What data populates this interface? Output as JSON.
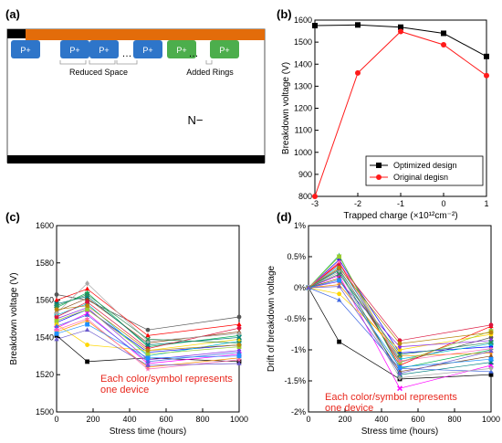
{
  "panels": [
    {
      "id": "a",
      "label": "(a)"
    },
    {
      "id": "b",
      "label": "(b)"
    },
    {
      "id": "c",
      "label": "(c)"
    },
    {
      "id": "d",
      "label": "(d)"
    }
  ],
  "diagram_a": {
    "rings": [
      {
        "label": "P+",
        "color": "#2e75c9"
      },
      {
        "label": "P+",
        "color": "#2e75c9"
      },
      {
        "label": "P+",
        "color": "#2e75c9"
      },
      {
        "label": "P+",
        "color": "#2e75c9"
      },
      {
        "label": "P+",
        "color": "#4cae4c"
      },
      {
        "label": "P+",
        "color": "#4cae4c"
      }
    ],
    "ellipsis": "…",
    "reduced_space_label": "Reduced Space",
    "added_rings_label": "Added Rings",
    "substrate_label": "N−",
    "metal_color": "#e36c0a"
  },
  "chart_data": [
    {
      "panel": "b",
      "type": "line",
      "xlabel": "Trapped charge (×10¹²cm⁻²)",
      "ylabel": "Breakdown voltage (V)",
      "xlim": [
        -3,
        1
      ],
      "ylim": [
        800,
        1600
      ],
      "xticks": [
        -3,
        -2,
        -1,
        0,
        1
      ],
      "yticks": [
        800,
        900,
        1000,
        1100,
        1200,
        1300,
        1400,
        1500,
        1600
      ],
      "legend_position": "bottom-right",
      "series": [
        {
          "name": "Optimized design",
          "color": "#000000",
          "marker": "square",
          "x": [
            -3,
            -2,
            -1,
            0,
            1
          ],
          "y": [
            1575,
            1578,
            1568,
            1540,
            1435
          ]
        },
        {
          "name": "Original degisn",
          "color": "#ff1a1a",
          "marker": "circle",
          "x": [
            -3,
            -2,
            -1,
            0,
            1
          ],
          "y": [
            800,
            1360,
            1548,
            1488,
            1348
          ]
        }
      ]
    },
    {
      "panel": "c",
      "type": "line",
      "xlabel": "Stress time (hours)",
      "ylabel": "Breakdown voltage (V)",
      "xlim": [
        0,
        1000
      ],
      "ylim": [
        1500,
        1600
      ],
      "xticks": [
        0,
        200,
        400,
        600,
        800,
        1000
      ],
      "yticks": [
        1500,
        1520,
        1540,
        1560,
        1580,
        1600
      ],
      "annotation": "Each color/symbol represents one device",
      "x": [
        0,
        168,
        500,
        1000
      ],
      "series": [
        {
          "color": "#000000",
          "values": [
            1541,
            1527,
            1529,
            1527
          ]
        },
        {
          "color": "#555555",
          "values": [
            1563,
            1560,
            1544,
            1551
          ]
        },
        {
          "color": "#ff0000",
          "values": [
            1560,
            1566,
            1541,
            1547
          ]
        },
        {
          "color": "#0000ff",
          "values": [
            1548,
            1555,
            1532,
            1536
          ]
        },
        {
          "color": "#00b050",
          "values": [
            1556,
            1564,
            1535,
            1541
          ]
        },
        {
          "color": "#ff00ff",
          "values": [
            1545,
            1553,
            1526,
            1531
          ]
        },
        {
          "color": "#00bcd4",
          "values": [
            1552,
            1558,
            1530,
            1538
          ]
        },
        {
          "color": "#ffd700",
          "values": [
            1547,
            1536,
            1533,
            1539
          ]
        },
        {
          "color": "#8b4513",
          "values": [
            1554,
            1561,
            1537,
            1543
          ]
        },
        {
          "color": "#8a2be2",
          "values": [
            1550,
            1556,
            1528,
            1533
          ]
        },
        {
          "color": "#ff8c00",
          "values": [
            1543,
            1549,
            1524,
            1529
          ]
        },
        {
          "color": "#008080",
          "values": [
            1558,
            1562,
            1536,
            1540
          ]
        },
        {
          "color": "#9acd32",
          "values": [
            1549,
            1555,
            1531,
            1535
          ]
        },
        {
          "color": "#dc143c",
          "values": [
            1551,
            1559,
            1534,
            1545
          ]
        },
        {
          "color": "#4169e1",
          "values": [
            1546,
            1552,
            1527,
            1532
          ]
        },
        {
          "color": "#a9a9a9",
          "values": [
            1553,
            1569,
            1538,
            1542
          ]
        },
        {
          "color": "#ff69b4",
          "values": [
            1544,
            1550,
            1523,
            1528
          ]
        },
        {
          "color": "#2e8b57",
          "values": [
            1557,
            1563,
            1539,
            1537
          ]
        },
        {
          "color": "#1e90ff",
          "values": [
            1542,
            1547,
            1529,
            1530
          ]
        },
        {
          "color": "#b8860b",
          "values": [
            1555,
            1557,
            1533,
            1536
          ]
        },
        {
          "color": "#6a5acd",
          "values": [
            1539,
            1544,
            1525,
            1526
          ]
        }
      ]
    },
    {
      "panel": "d",
      "type": "line",
      "xlabel": "Stress time (hours)",
      "ylabel": "Drift of breakdown voltage",
      "xlim": [
        0,
        1000
      ],
      "ylim": [
        -2,
        1
      ],
      "xticks": [
        0,
        200,
        400,
        600,
        800,
        1000
      ],
      "yticks": [
        -2,
        -1.5,
        -1,
        -0.5,
        0,
        0.5,
        1
      ],
      "ytick_labels": [
        "-2%",
        "-1.5%",
        "-1%",
        "-0.5%",
        "0%",
        "0.5%",
        "1%"
      ],
      "annotation": "Each color/symbol represents one device",
      "x": [
        0,
        168,
        500,
        1000
      ],
      "series": [
        {
          "color": "#000000",
          "values": [
            0,
            -0.87,
            -1.47,
            -1.4
          ]
        },
        {
          "color": "#555555",
          "values": [
            0,
            0.3,
            -1.2,
            -0.8
          ]
        },
        {
          "color": "#ff0000",
          "values": [
            0,
            0.4,
            -1.25,
            -0.62
          ]
        },
        {
          "color": "#0000ff",
          "values": [
            0,
            0.45,
            -1.05,
            -0.95
          ]
        },
        {
          "color": "#00b050",
          "values": [
            0,
            0.52,
            -1.3,
            -1.0
          ]
        },
        {
          "color": "#ff00ff",
          "values": [
            0,
            0.2,
            -1.62,
            -1.25
          ]
        },
        {
          "color": "#00bcd4",
          "values": [
            0,
            0.35,
            -1.15,
            -0.9
          ]
        },
        {
          "color": "#ffd700",
          "values": [
            0,
            -0.1,
            -1.0,
            -0.75
          ]
        },
        {
          "color": "#8b4513",
          "values": [
            0,
            0.15,
            -1.35,
            -1.1
          ]
        },
        {
          "color": "#8a2be2",
          "values": [
            0,
            0.1,
            -0.95,
            -0.85
          ]
        },
        {
          "color": "#ff8c00",
          "values": [
            0,
            0.05,
            -1.1,
            -1.05
          ]
        },
        {
          "color": "#008080",
          "values": [
            0,
            0.28,
            -1.4,
            -1.2
          ]
        },
        {
          "color": "#9acd32",
          "values": [
            0,
            0.5,
            -1.2,
            -0.7
          ]
        },
        {
          "color": "#dc143c",
          "values": [
            0,
            0.38,
            -0.85,
            -0.6
          ]
        },
        {
          "color": "#4169e1",
          "values": [
            0,
            -0.2,
            -1.3,
            -1.35
          ]
        },
        {
          "color": "#a9a9a9",
          "values": [
            0,
            0.25,
            -1.45,
            -1.3
          ]
        },
        {
          "color": "#ff69b4",
          "values": [
            0,
            0.42,
            -1.18,
            -0.98
          ]
        },
        {
          "color": "#2e8b57",
          "values": [
            0,
            0.22,
            -1.08,
            -0.88
          ]
        },
        {
          "color": "#1e90ff",
          "values": [
            0,
            0.12,
            -1.28,
            -1.15
          ]
        },
        {
          "color": "#b8860b",
          "values": [
            0,
            0.32,
            -0.9,
            -0.72
          ]
        },
        {
          "color": "#6a5acd",
          "values": [
            0,
            0.02,
            -1.38,
            -1.02
          ]
        }
      ]
    }
  ]
}
